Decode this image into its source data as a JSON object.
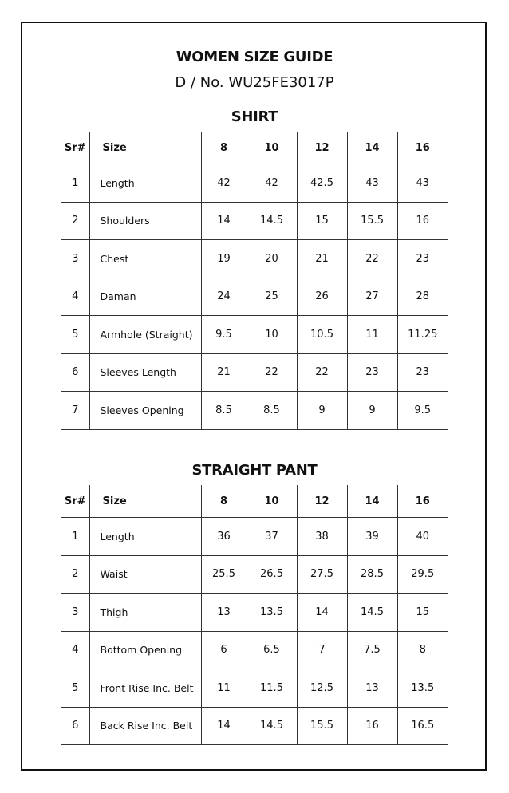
{
  "header": {
    "title": "WOMEN SIZE GUIDE",
    "design_no": "D / No. WU25FE3017P"
  },
  "sections": [
    {
      "title": "SHIRT",
      "columns": [
        "Sr#",
        "Size",
        "8",
        "10",
        "12",
        "14",
        "16"
      ],
      "rows": [
        [
          "1",
          "Length",
          "42",
          "42",
          "42.5",
          "43",
          "43"
        ],
        [
          "2",
          "Shoulders",
          "14",
          "14.5",
          "15",
          "15.5",
          "16"
        ],
        [
          "3",
          "Chest",
          "19",
          "20",
          "21",
          "22",
          "23"
        ],
        [
          "4",
          "Daman",
          "24",
          "25",
          "26",
          "27",
          "28"
        ],
        [
          "5",
          "Armhole (Straight)",
          "9.5",
          "10",
          "10.5",
          "11",
          "11.25"
        ],
        [
          "6",
          "Sleeves Length",
          "21",
          "22",
          "22",
          "23",
          "23"
        ],
        [
          "7",
          "Sleeves Opening",
          "8.5",
          "8.5",
          "9",
          "9",
          "9.5"
        ]
      ]
    },
    {
      "title": "STRAIGHT PANT",
      "columns": [
        "Sr#",
        "Size",
        "8",
        "10",
        "12",
        "14",
        "16"
      ],
      "rows": [
        [
          "1",
          "Length",
          "36",
          "37",
          "38",
          "39",
          "40"
        ],
        [
          "2",
          "Waist",
          "25.5",
          "26.5",
          "27.5",
          "28.5",
          "29.5"
        ],
        [
          "3",
          "Thigh",
          "13",
          "13.5",
          "14",
          "14.5",
          "15"
        ],
        [
          "4",
          "Bottom Opening",
          "6",
          "6.5",
          "7",
          "7.5",
          "8"
        ],
        [
          "5",
          "Front Rise Inc. Belt",
          "11",
          "11.5",
          "12.5",
          "13",
          "13.5"
        ],
        [
          "6",
          "Back Rise Inc. Belt",
          "14",
          "14.5",
          "15.5",
          "16",
          "16.5"
        ]
      ]
    }
  ]
}
